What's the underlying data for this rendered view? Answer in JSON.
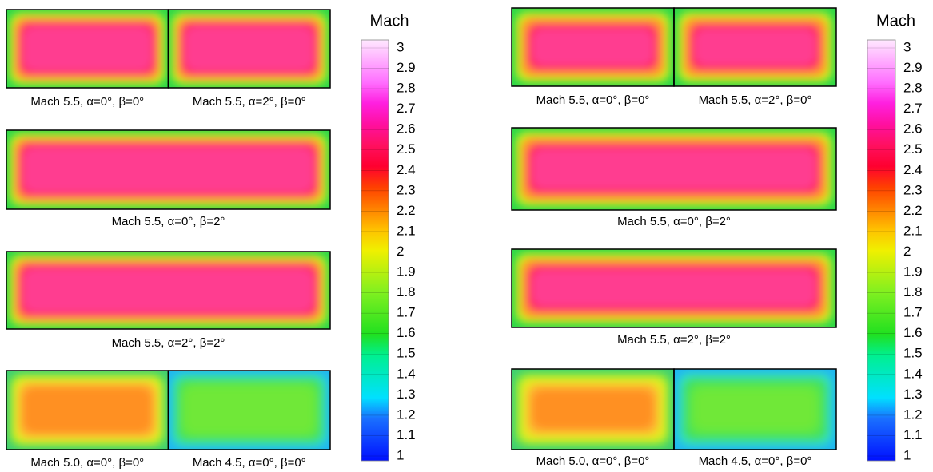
{
  "figures": [
    {
      "panels": [
        {
          "labels": [
            "Mach 5.5, α=0°, β=0°",
            "Mach 5.5, α=2°, β=0°"
          ]
        },
        {
          "labels": [
            "Mach 5.5, α=0°, β=2°"
          ]
        },
        {
          "labels": [
            "Mach 5.5, α=2°, β=2°"
          ]
        },
        {
          "labels": [
            "Mach 5.0, α=0°, β=0°",
            "Mach 4.5, α=0°, β=0°"
          ]
        }
      ],
      "colorbar": {
        "title": "Mach",
        "lim": [
          1,
          3
        ],
        "ticks": [
          1,
          1.1,
          1.2,
          1.3,
          1.4,
          1.5,
          1.6,
          1.7,
          1.8,
          1.9,
          2,
          2.1,
          2.2,
          2.3,
          2.4,
          2.5,
          2.6,
          2.7,
          2.8,
          2.9,
          3
        ]
      }
    },
    {
      "panels": [
        {
          "labels": [
            "Mach 5.5, α=0°, β=0°",
            "Mach 5.5, α=2°, β=0°"
          ]
        },
        {
          "labels": [
            "Mach 5.5, α=0°, β=2°"
          ]
        },
        {
          "labels": [
            "Mach 5.5, α=2°, β=2°"
          ]
        },
        {
          "labels": [
            "Mach 5.0, α=0°, β=0°",
            "Mach 4.5, α=0°, β=0°"
          ]
        }
      ],
      "colorbar": {
        "title": "Mach",
        "lim": [
          1,
          3
        ],
        "ticks": [
          1,
          1.1,
          1.2,
          1.3,
          1.4,
          1.5,
          1.6,
          1.7,
          1.8,
          1.9,
          2,
          2.1,
          2.2,
          2.3,
          2.4,
          2.5,
          2.6,
          2.7,
          2.8,
          2.9,
          3
        ]
      }
    }
  ]
}
